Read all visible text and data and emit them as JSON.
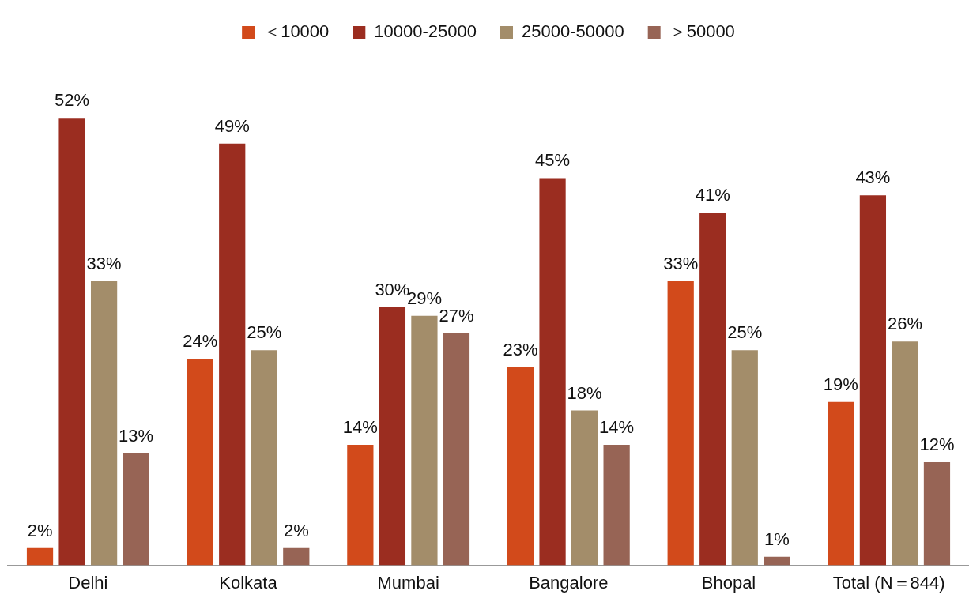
{
  "chart_data": {
    "type": "bar",
    "categories": [
      "Delhi",
      "Kolkata",
      "Mumbai",
      "Bangalore",
      "Bhopal",
      "Total (N＝844)"
    ],
    "series": [
      {
        "name": "＜10000",
        "color": "#d24a1b",
        "values": [
          2,
          24,
          14,
          23,
          33,
          19
        ],
        "value_labels": [
          "2%",
          "24%",
          "14%",
          "23%",
          "33%",
          "19%"
        ]
      },
      {
        "name": "10000-25000",
        "color": "#9b2d20",
        "values": [
          52,
          49,
          30,
          45,
          41,
          43
        ],
        "value_labels": [
          "52%",
          "49%",
          "30%",
          "45%",
          "41%",
          "43%"
        ]
      },
      {
        "name": "25000-50000",
        "color": "#a38d6a",
        "values": [
          33,
          25,
          29,
          18,
          25,
          26
        ],
        "value_labels": [
          "33%",
          "25%",
          "29%",
          "18%",
          "25%",
          "26%"
        ]
      },
      {
        "name": "＞50000",
        "color": "#976455",
        "values": [
          13,
          2,
          27,
          14,
          1,
          12
        ],
        "value_labels": [
          "13%",
          "2%",
          "27%",
          "14%",
          "1%",
          "12%"
        ]
      }
    ],
    "grid": false,
    "legend": "top"
  }
}
